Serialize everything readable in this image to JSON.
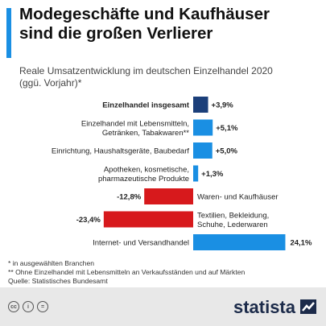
{
  "header": {
    "title_line1": "Modegeschäfte und Kaufhäuser",
    "title_line2": "sind die großen Verlierer",
    "subtitle_line1": "Reale Umsatzentwicklung im deutschen Einzelhandel 2020",
    "subtitle_line2": "(ggü. Vorjahr)*"
  },
  "chart_data": {
    "type": "bar",
    "orientation": "horizontal",
    "categories": [
      [
        "Einzelhandel insgesamt"
      ],
      [
        "Einzelhandel mit Lebensmitteln,",
        "Getränken, Tabakwaren**"
      ],
      [
        "Einrichtung, Haushaltsgeräte, Baubedarf"
      ],
      [
        "Apotheken, kosmetische,",
        "pharmazeutische Produkte"
      ],
      [
        "Waren- und Kaufhäuser"
      ],
      [
        "Textilien, Bekleidung,",
        "Schuhe, Lederwaren"
      ],
      [
        "Internet- und Versandhandel"
      ]
    ],
    "values": [
      3.9,
      5.1,
      5.0,
      1.3,
      -12.8,
      -23.4,
      24.1
    ],
    "value_labels": [
      "+3,9%",
      "+5,1%",
      "+5,0%",
      "+1,3%",
      "-12,8%",
      "-23,4%",
      "24,1%"
    ],
    "bold_category": 0,
    "colors": {
      "total": "#1b3f7a",
      "positive": "#1a8fe3",
      "negative": "#d7191c"
    }
  },
  "notes": [
    "*   in ausgewählten Branchen",
    "** Ohne Einzelhandel mit Lebensmitteln an Verkaufsständen und auf Märkten",
    "Quelle: Statistisches Bundesamt"
  ],
  "footer": {
    "cc_label": "cc",
    "by_label": "i",
    "nd_label": "=",
    "brand": "statista"
  }
}
